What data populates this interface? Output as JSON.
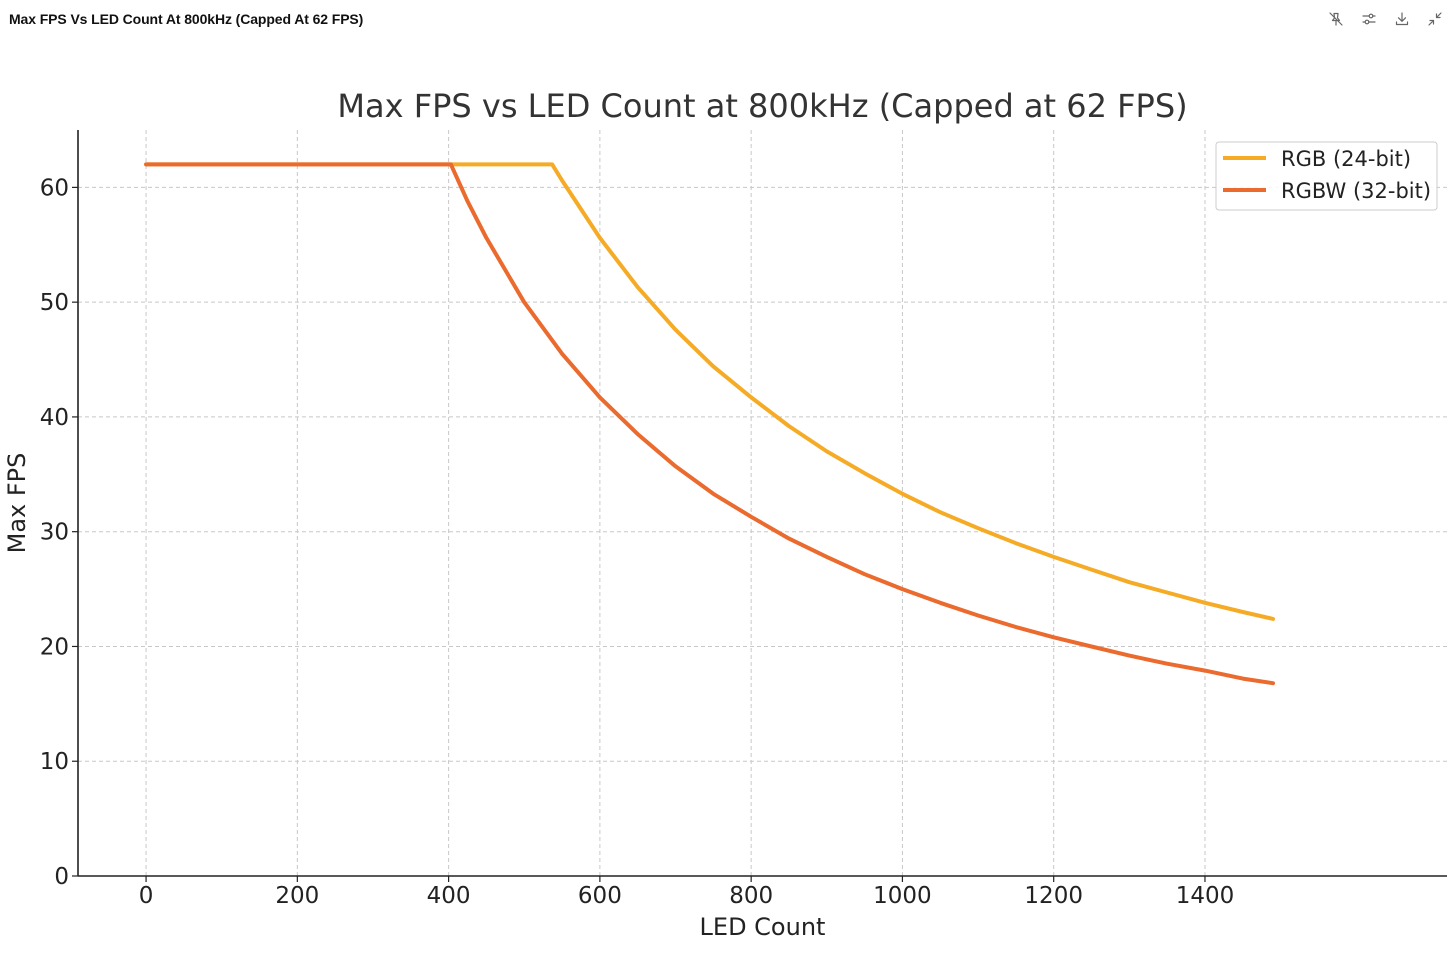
{
  "window": {
    "title": "Max FPS Vs LED Count At 800kHz (Capped At 62 FPS)"
  },
  "toolbar": {
    "icons": [
      "pin-off-icon",
      "sliders-icon",
      "download-icon",
      "collapse-icon"
    ]
  },
  "chart_data": {
    "type": "line",
    "title": "Max FPS vs LED Count at 800kHz (Capped at 62 FPS)",
    "xlabel": "LED Count",
    "ylabel": "Max FPS",
    "xlim": [
      -90,
      1720
    ],
    "ylim": [
      0,
      65
    ],
    "xticks": [
      0,
      200,
      400,
      600,
      800,
      1000,
      1200,
      1400
    ],
    "yticks": [
      0,
      10,
      20,
      30,
      40,
      50,
      60
    ],
    "grid": true,
    "legend_position": "top-right",
    "series": [
      {
        "name": "RGB (24-bit)",
        "color": "#f5ab26",
        "x": [
          0,
          100,
          200,
          300,
          400,
          500,
          537,
          550,
          600,
          650,
          700,
          750,
          800,
          850,
          900,
          950,
          1000,
          1050,
          1100,
          1150,
          1200,
          1250,
          1300,
          1350,
          1400,
          1450,
          1490
        ],
        "y": [
          62,
          62,
          62,
          62,
          62,
          62,
          62,
          60.6,
          55.6,
          51.3,
          47.6,
          44.4,
          41.7,
          39.2,
          37.0,
          35.1,
          33.3,
          31.7,
          30.3,
          29.0,
          27.8,
          26.7,
          25.6,
          24.7,
          23.8,
          23.0,
          22.4
        ]
      },
      {
        "name": "RGBW (32-bit)",
        "color": "#eb6a2e",
        "x": [
          0,
          100,
          200,
          300,
          400,
          403,
          425,
          450,
          500,
          550,
          600,
          650,
          700,
          750,
          800,
          850,
          900,
          950,
          1000,
          1050,
          1100,
          1150,
          1200,
          1250,
          1300,
          1350,
          1400,
          1450,
          1490
        ],
        "y": [
          62,
          62,
          62,
          62,
          62,
          62,
          58.8,
          55.6,
          50.0,
          45.5,
          41.7,
          38.5,
          35.7,
          33.3,
          31.3,
          29.4,
          27.8,
          26.3,
          25.0,
          23.8,
          22.7,
          21.7,
          20.8,
          20.0,
          19.2,
          18.5,
          17.9,
          17.2,
          16.8
        ]
      }
    ]
  }
}
